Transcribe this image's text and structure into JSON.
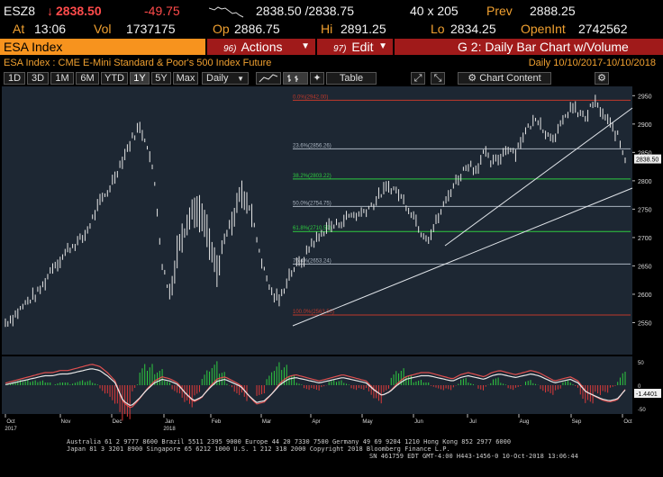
{
  "quote": {
    "ticker": "ESZ8",
    "arrow": "↓",
    "last": "2838.50",
    "change": "-49.75",
    "spark": "sparkline-icon",
    "bid_ask": "2838.50 /2838.75",
    "size": "40 x 205",
    "prev_label": "Prev",
    "prev": "2888.25",
    "at_label": "At",
    "time": "13:06",
    "vol_label": "Vol",
    "vol": "1737175",
    "op_label": "Op",
    "op": "2886.75",
    "hi_label": "Hi",
    "hi": "2891.25",
    "lo_label": "Lo",
    "lo": "2834.25",
    "oi_label": "OpenInt",
    "oi": "2742562"
  },
  "command": {
    "security": "ESA Index",
    "actions_num": "96)",
    "actions": "Actions",
    "edit_num": "97)",
    "edit": "Edit",
    "function": "G 2: Daily Bar Chart w/Volume"
  },
  "chart_title": "ESA Index : CME E-Mini Standard & Poor's 500 Index Future",
  "period": "Daily  10/10/2017-10/10/2018",
  "toolbar": {
    "ranges": [
      "1D",
      "3D",
      "1M",
      "6M",
      "YTD",
      "1Y",
      "5Y",
      "Max"
    ],
    "selected": "1Y",
    "freq": "Daily",
    "chart_content": "Chart Content",
    "table": "Table"
  },
  "chart_data": {
    "type": "bar",
    "price_axis": {
      "min": 2500,
      "max": 2960,
      "ticks": [
        2550,
        2600,
        2650,
        2700,
        2750,
        2800,
        2850,
        2900,
        2950
      ]
    },
    "last_price_label": "2838.50",
    "fib_levels": [
      {
        "label": "0.0%(2942.00)",
        "value": 2942,
        "color": "#c0392b"
      },
      {
        "label": "23.6%(2856.26)",
        "value": 2856.26,
        "color": "#aab4c0"
      },
      {
        "label": "38.2%(2803.22)",
        "value": 2803.22,
        "color": "#2ecc40"
      },
      {
        "label": "50.0%(2754.75)",
        "value": 2754.75,
        "color": "#aab4c0"
      },
      {
        "label": "61.8%(2710.59)",
        "value": 2710.59,
        "color": "#2ecc40"
      },
      {
        "label": "76.4%(2653.24)",
        "value": 2653.24,
        "color": "#aab4c0"
      },
      {
        "label": "100.0%(2563.50)",
        "value": 2563.5,
        "color": "#c0392b"
      }
    ],
    "months": [
      "Oct",
      "Nov",
      "Dec",
      "Jan",
      "Feb",
      "Mar",
      "Apr",
      "May",
      "Jun",
      "Jul",
      "Aug",
      "Sep",
      "Oct"
    ],
    "years": [
      "2017",
      "2018"
    ],
    "price_path": [
      2550,
      2560,
      2575,
      2590,
      2600,
      2620,
      2650,
      2660,
      2680,
      2690,
      2700,
      2730,
      2760,
      2780,
      2810,
      2840,
      2870,
      2895,
      2870,
      2800,
      2650,
      2600,
      2680,
      2720,
      2750,
      2740,
      2690,
      2640,
      2700,
      2730,
      2780,
      2760,
      2700,
      2640,
      2600,
      2590,
      2630,
      2650,
      2660,
      2690,
      2700,
      2720,
      2720,
      2730,
      2740,
      2740,
      2750,
      2760,
      2780,
      2790,
      2780,
      2760,
      2740,
      2710,
      2700,
      2730,
      2760,
      2790,
      2810,
      2830,
      2820,
      2850,
      2830,
      2840,
      2860,
      2850,
      2880,
      2900,
      2910,
      2880,
      2880,
      2900,
      2930,
      2920,
      2910,
      2940,
      2920,
      2900,
      2880,
      2838
    ],
    "osc_axis": {
      "ticks": [
        "50",
        "0",
        "-50"
      ]
    },
    "osc_value_label": "-1.4401",
    "osc_path": [
      5,
      10,
      15,
      20,
      25,
      30,
      30,
      35,
      35,
      40,
      45,
      50,
      45,
      30,
      10,
      -40,
      -55,
      -35,
      -10,
      10,
      20,
      15,
      5,
      -20,
      -40,
      -30,
      -5,
      15,
      20,
      10,
      0,
      -25,
      -45,
      -40,
      -20,
      5,
      20,
      25,
      20,
      15,
      10,
      15,
      20,
      25,
      20,
      15,
      10,
      -10,
      -25,
      -15,
      5,
      20,
      25,
      30,
      30,
      25,
      20,
      15,
      25,
      30,
      25,
      20,
      30,
      35,
      30,
      25,
      30,
      35,
      30,
      20,
      10,
      15,
      20,
      10,
      -15,
      -25,
      -35,
      -40,
      -35,
      -10
    ]
  },
  "footer": {
    "line1": "Australia 61 2 9777 8600 Brazil 5511 2395 9000 Europe 44 20 7330 7500 Germany 49 69 9204 1210 Hong Kong 852 2977 6000",
    "line2": "Japan 81 3 3201 8900        Singapore 65 6212 1000        U.S. 1 212 318 2000       Copyright 2018 Bloomberg Finance L.P.",
    "line3": "SN 461759 EDT  GMT-4:00 H443-1456-0 10-Oct-2018 13:06:44"
  }
}
